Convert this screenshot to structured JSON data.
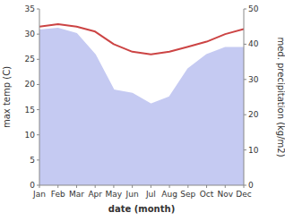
{
  "chart_data": {
    "type": "line",
    "xlabel": "date (month)",
    "ylabel": "max temp (C)",
    "y2label": "med. precipitation (kg/m2)",
    "categories": [
      "Jan",
      "Feb",
      "Mar",
      "Apr",
      "May",
      "Jun",
      "Jul",
      "Aug",
      "Sep",
      "Oct",
      "Nov",
      "Dec"
    ],
    "series": [
      {
        "type": "area",
        "axis": "y2",
        "color": "#c5caf2",
        "values": [
          44.0,
          44.5,
          43.0,
          37.0,
          27.0,
          26.0,
          23.0,
          25.0,
          33.0,
          37.0,
          39.0,
          39.0
        ]
      },
      {
        "type": "line",
        "color": "#cc4444",
        "values": [
          31.5,
          32.0,
          31.5,
          30.5,
          28.0,
          26.5,
          26.0,
          26.5,
          27.5,
          28.5,
          30.0,
          31.0
        ]
      }
    ],
    "ylim": [
      0,
      35
    ],
    "yticks": [
      0,
      5,
      10,
      15,
      20,
      25,
      30,
      35
    ],
    "y2lim": [
      0,
      50
    ],
    "y2ticks": [
      0,
      10,
      20,
      30,
      40,
      50
    ],
    "grid": false
  }
}
